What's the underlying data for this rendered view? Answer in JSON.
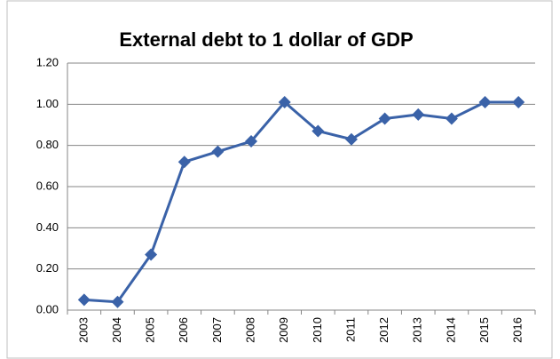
{
  "chart_data": {
    "type": "line",
    "title": "External debt to 1 dollar of GDP",
    "categories": [
      "2003",
      "2004",
      "2005",
      "2006",
      "2007",
      "2008",
      "2009",
      "2010",
      "2011",
      "2012",
      "2013",
      "2014",
      "2015",
      "2016"
    ],
    "values": [
      0.05,
      0.04,
      0.27,
      0.72,
      0.77,
      0.82,
      1.01,
      0.87,
      0.83,
      0.93,
      0.95,
      0.93,
      1.01,
      1.01
    ],
    "color": "#3a62a8",
    "ylim": [
      0,
      1.2
    ],
    "yticks": [
      {
        "value": 0,
        "label": "0.00"
      },
      {
        "value": 0.2,
        "label": "0.20"
      },
      {
        "value": 0.4,
        "label": "0.40"
      },
      {
        "value": 0.6,
        "label": "0.60"
      },
      {
        "value": 0.8,
        "label": "0.80"
      },
      {
        "value": 1.0,
        "label": "1.00"
      },
      {
        "value": 1.2,
        "label": "1.20"
      }
    ],
    "grid": true
  }
}
